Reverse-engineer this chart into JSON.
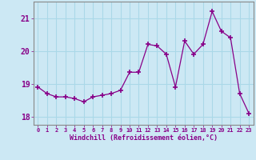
{
  "x": [
    0,
    1,
    2,
    3,
    4,
    5,
    6,
    7,
    8,
    9,
    10,
    11,
    12,
    13,
    14,
    15,
    16,
    17,
    18,
    19,
    20,
    21,
    22,
    23
  ],
  "y": [
    18.9,
    18.7,
    18.6,
    18.6,
    18.55,
    18.45,
    18.6,
    18.65,
    18.7,
    18.8,
    19.35,
    19.35,
    20.2,
    20.15,
    19.9,
    18.9,
    20.3,
    19.9,
    20.2,
    21.2,
    20.6,
    20.4,
    18.7,
    18.1
  ],
  "line_color": "#880088",
  "marker": "+",
  "marker_color": "#880088",
  "bg_color": "#cce8f4",
  "grid_color": "#aad8e8",
  "xlabel": "Windchill (Refroidissement éolien,°C)",
  "ylim": [
    17.75,
    21.5
  ],
  "yticks": [
    18,
    19,
    20,
    21
  ],
  "xticks": [
    0,
    1,
    2,
    3,
    4,
    5,
    6,
    7,
    8,
    9,
    10,
    11,
    12,
    13,
    14,
    15,
    16,
    17,
    18,
    19,
    20,
    21,
    22,
    23
  ],
  "tick_color": "#880088",
  "axis_color": "#888888",
  "spine_color": "#888888"
}
